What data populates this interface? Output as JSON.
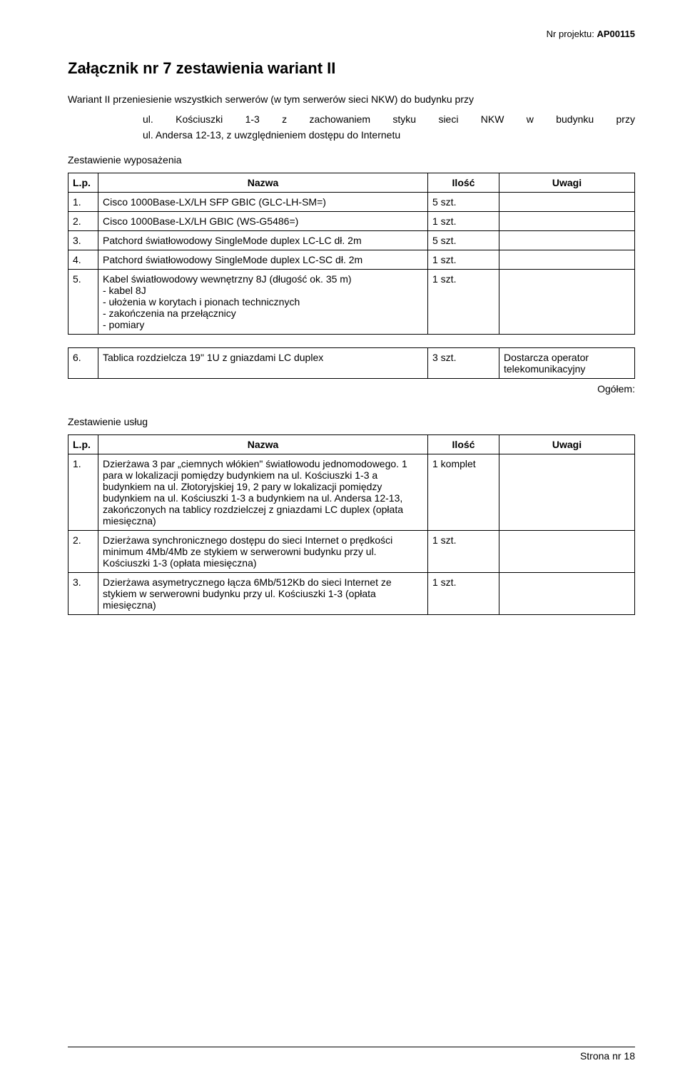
{
  "header": {
    "label": "Nr projektu:",
    "value": "AP00115"
  },
  "title": "Załącznik nr 7 zestawienia wariant II",
  "intro": "Wariant II przeniesienie wszystkich serwerów (w tym serwerów sieci NKW) do budynku przy",
  "indent": {
    "line1": "ul. Kościuszki 1-3 z zachowaniem styku sieci NKW w budynku przy",
    "line2": "ul. Andersa 12-13, z uwzględnieniem dostępu do Internetu"
  },
  "section1_heading": "Zestawienie wyposażenia",
  "columns": {
    "lp": "L.p.",
    "nazwa": "Nazwa",
    "ilosc": "Ilość",
    "uwagi": "Uwagi"
  },
  "table1": [
    {
      "lp": "1.",
      "nazwa": "Cisco 1000Base-LX/LH SFP GBIC  (GLC-LH-SM=)",
      "ilosc": "5 szt.",
      "uwagi": ""
    },
    {
      "lp": "2.",
      "nazwa": "Cisco 1000Base-LX/LH GBIC (WS-G5486=)",
      "ilosc": "1 szt.",
      "uwagi": ""
    },
    {
      "lp": "3.",
      "nazwa": "Patchord światłowodowy SingleMode duplex LC-LC dł. 2m",
      "ilosc": "5 szt.",
      "uwagi": ""
    },
    {
      "lp": "4.",
      "nazwa": "Patchord światłowodowy SingleMode duplex LC-SC dł. 2m",
      "ilosc": "1 szt.",
      "uwagi": ""
    },
    {
      "lp": "5.",
      "nazwa": "Kabel światłowodowy wewnętrzny 8J (długość ok. 35 m)\n- kabel 8J\n- ułożenia w korytach i pionach technicznych\n- zakończenia na przełącznicy\n- pomiary",
      "ilosc": "1 szt.",
      "uwagi": ""
    }
  ],
  "table1b": [
    {
      "lp": "6.",
      "nazwa": "Tablica rozdzielcza 19\" 1U z gniazdami LC duplex",
      "ilosc": "3 szt.",
      "uwagi": "Dostarcza operator telekomunikacyjny"
    }
  ],
  "oglolem": "Ogółem:",
  "section2_heading": "Zestawienie usług",
  "table2": [
    {
      "lp": "1.",
      "nazwa": "Dzierżawa 3 par „ciemnych włókien\" światłowodu jednomodowego. 1 para w lokalizacji pomiędzy budynkiem na ul. Kościuszki 1-3 a budynkiem na ul. Złotoryjskiej 19, 2 pary w lokalizacji pomiędzy budynkiem na ul. Kościuszki 1-3 a budynkiem na ul. Andersa 12-13,  zakończonych na tablicy rozdzielczej z gniazdami LC duplex (opłata miesięczna)",
      "ilosc": "1 komplet",
      "uwagi": ""
    },
    {
      "lp": "2.",
      "nazwa": "Dzierżawa synchronicznego dostępu do sieci Internet o prędkości minimum 4Mb/4Mb ze stykiem w serwerowni budynku przy ul. Kościuszki 1-3 (opłata miesięczna)",
      "ilosc": "1 szt.",
      "uwagi": ""
    },
    {
      "lp": "3.",
      "nazwa": "Dzierżawa asymetrycznego łącza 6Mb/512Kb do sieci Internet ze stykiem w serwerowni budynku przy ul. Kościuszki 1-3 (opłata miesięczna)",
      "ilosc": "1 szt.",
      "uwagi": ""
    }
  ],
  "footer": "Strona nr 18"
}
